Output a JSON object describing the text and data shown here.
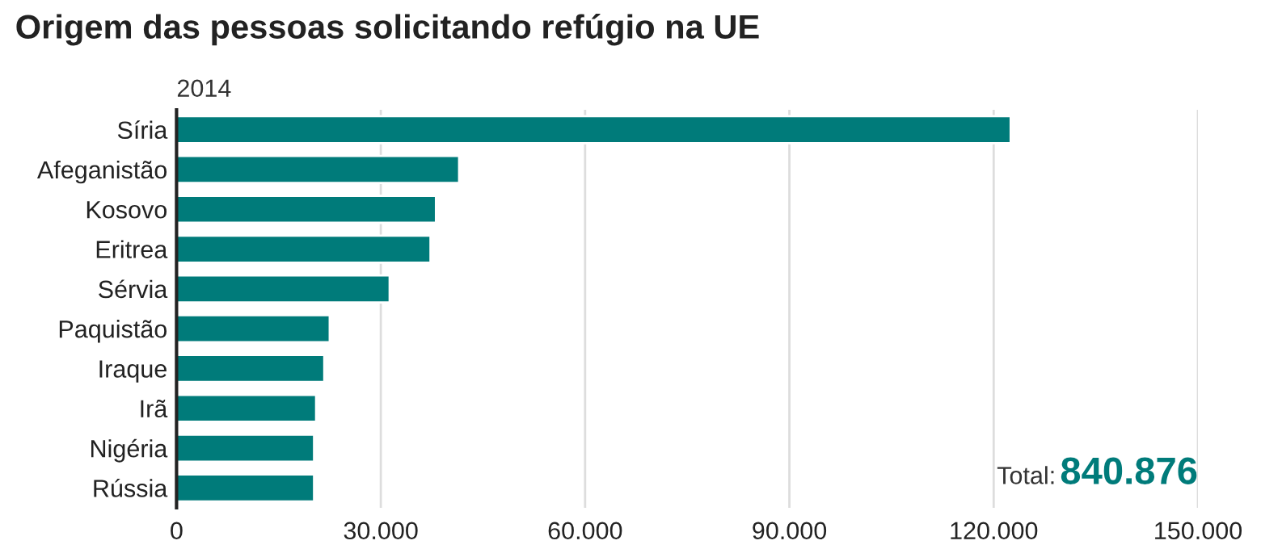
{
  "chart_data": {
    "type": "bar",
    "orientation": "horizontal",
    "title": "Origem das pessoas solicitando refúgio na UE",
    "subtitle": "2014",
    "categories": [
      "Síria",
      "Afeganistão",
      "Kosovo",
      "Eritrea",
      "Sérvia",
      "Paquistão",
      "Iraque",
      "Irã",
      "Nigéria",
      "Rússia"
    ],
    "values": [
      122500,
      41500,
      38100,
      37300,
      31300,
      22500,
      21700,
      20500,
      20200,
      20200
    ],
    "color": "#007b7a",
    "xlim": [
      0,
      150000
    ],
    "xticks": [
      0,
      {
        "value": 30000,
        "label": "30.000"
      },
      {
        "value": 60000,
        "label": "60.000"
      },
      {
        "value": 90000,
        "label": "90.000"
      },
      {
        "value": 120000,
        "label": "120.000"
      },
      {
        "value": 150000,
        "label": "150.000"
      }
    ],
    "grid": "x",
    "legend": false,
    "annotations": [
      "Total:",
      "840.876"
    ]
  }
}
